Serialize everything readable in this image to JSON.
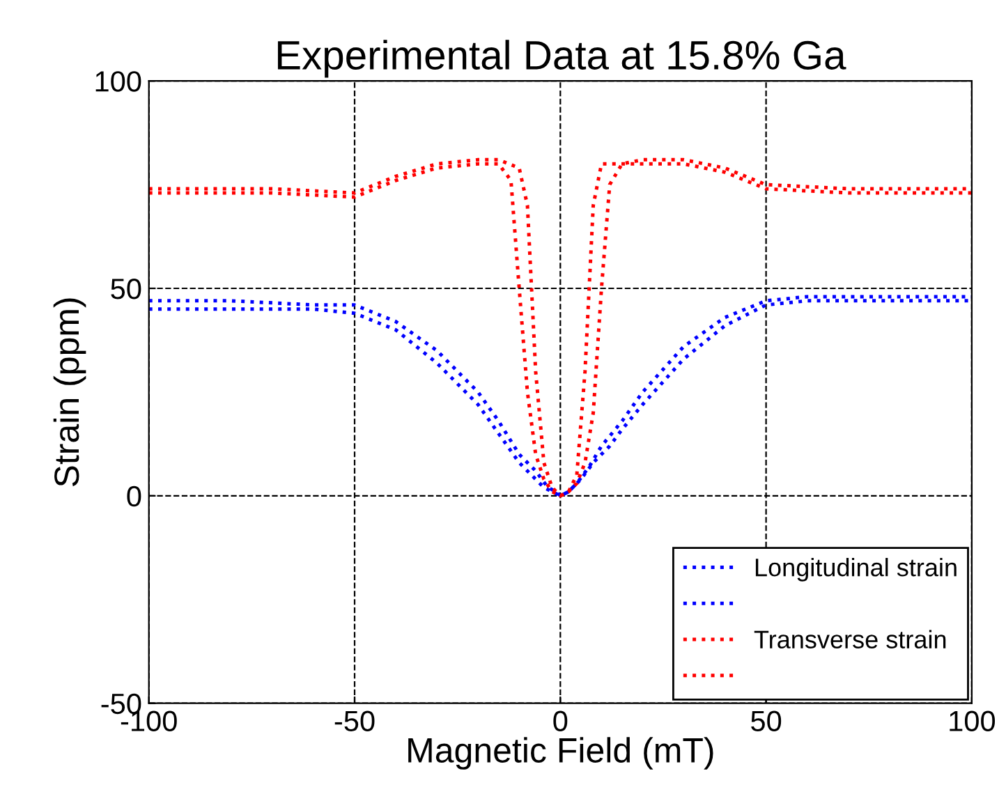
{
  "chart_data": {
    "type": "line",
    "title": "Experimental Data at 15.8% Ga",
    "xlabel": "Magnetic Field (mT)",
    "ylabel": "Strain (ppm)",
    "xlim": [
      -100,
      100
    ],
    "ylim": [
      -50,
      100
    ],
    "xticks": [
      -100,
      -50,
      0,
      50,
      100
    ],
    "yticks": [
      -50,
      0,
      50,
      100
    ],
    "grid": true,
    "legend": "bottom right",
    "line_style": "dotted",
    "marker": "none",
    "series": [
      {
        "name": "Longitudinal strain",
        "color": "#0000ff",
        "x": [
          -100,
          -80,
          -60,
          -50,
          -40,
          -30,
          -20,
          -15,
          -10,
          -6,
          -3,
          -1,
          0,
          2,
          4,
          7,
          10,
          15,
          20,
          30,
          40,
          50,
          60,
          80,
          100
        ],
        "values": [
          47,
          47,
          46,
          46,
          42,
          35,
          25,
          18,
          10,
          6,
          2,
          1,
          0,
          1,
          3,
          7,
          12,
          18,
          25,
          36,
          43,
          47,
          48,
          48,
          48
        ]
      },
      {
        "color": "#0000ff",
        "x": [
          -100,
          -80,
          -60,
          -50,
          -40,
          -30,
          -20,
          -15,
          -10,
          -7,
          -4,
          -2,
          0,
          2,
          5,
          8,
          12,
          15,
          20,
          30,
          40,
          50,
          60,
          80,
          100
        ],
        "values": [
          45,
          45,
          45,
          44,
          40,
          32,
          22,
          15,
          8,
          5,
          2,
          1,
          0,
          1,
          4,
          8,
          12,
          16,
          22,
          33,
          41,
          46,
          47,
          47,
          47
        ]
      },
      {
        "name": "Transverse strain",
        "color": "#ff0000",
        "x": [
          -100,
          -70,
          -50,
          -40,
          -30,
          -20,
          -15,
          -12,
          -10,
          -8,
          -6,
          -4,
          -2,
          0,
          2,
          4,
          6,
          8,
          10,
          15,
          20,
          30,
          40,
          50,
          70,
          100
        ],
        "values": [
          73,
          73,
          72,
          76,
          79,
          80,
          80,
          76,
          50,
          25,
          10,
          4,
          1,
          0,
          1,
          5,
          30,
          70,
          80,
          80,
          80,
          80,
          78,
          74,
          73,
          73
        ]
      },
      {
        "color": "#ff0000",
        "x": [
          -100,
          -70,
          -50,
          -40,
          -30,
          -20,
          -15,
          -10,
          -8,
          -6,
          -4,
          -2,
          0,
          2,
          4,
          6,
          8,
          10,
          12,
          15,
          20,
          30,
          40,
          50,
          70,
          100
        ],
        "values": [
          74,
          74,
          73,
          77,
          80,
          81,
          81,
          79,
          70,
          30,
          8,
          2,
          0,
          1,
          3,
          8,
          20,
          50,
          75,
          80,
          81,
          81,
          79,
          75,
          74,
          74
        ]
      }
    ]
  }
}
